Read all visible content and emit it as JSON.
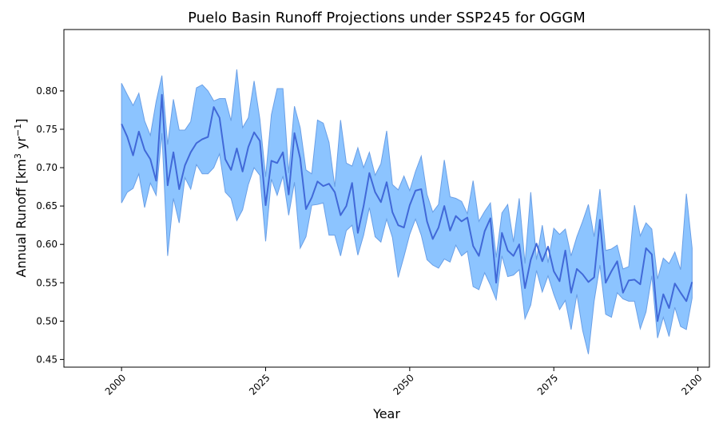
{
  "chart_data": {
    "type": "area",
    "title": "Puelo Basin Runoff Projections under SSP245 for OGGM",
    "xlabel": "Year",
    "ylabel": {
      "prefix": "Annual Runoff [km",
      "sup1": "3",
      "mid": " yr",
      "sup2": "−1",
      "suffix": "]"
    },
    "xlim": [
      1990,
      2102
    ],
    "ylim": [
      0.44,
      0.88
    ],
    "xticks": [
      2000,
      2025,
      2050,
      2075,
      2100
    ],
    "yticks": [
      0.45,
      0.5,
      0.55,
      0.6,
      0.65,
      0.7,
      0.75,
      0.8
    ],
    "grid": false,
    "x": [
      2000,
      2001,
      2002,
      2003,
      2004,
      2005,
      2006,
      2007,
      2008,
      2009,
      2010,
      2011,
      2012,
      2013,
      2014,
      2015,
      2016,
      2017,
      2018,
      2019,
      2020,
      2021,
      2022,
      2023,
      2024,
      2025,
      2026,
      2027,
      2028,
      2029,
      2030,
      2031,
      2032,
      2033,
      2034,
      2035,
      2036,
      2037,
      2038,
      2039,
      2040,
      2041,
      2042,
      2043,
      2044,
      2045,
      2046,
      2047,
      2048,
      2049,
      2050,
      2051,
      2052,
      2053,
      2054,
      2055,
      2056,
      2057,
      2058,
      2059,
      2060,
      2061,
      2062,
      2063,
      2064,
      2065,
      2066,
      2067,
      2068,
      2069,
      2070,
      2071,
      2072,
      2073,
      2074,
      2075,
      2076,
      2077,
      2078,
      2079,
      2080,
      2081,
      2082,
      2083,
      2084,
      2085,
      2086,
      2087,
      2088,
      2089,
      2090,
      2091,
      2092,
      2093,
      2094,
      2095,
      2096,
      2097,
      2098,
      2099
    ],
    "series": [
      {
        "values": [
          0.757,
          0.74,
          0.716,
          0.747,
          0.723,
          0.711,
          0.683,
          0.795,
          0.677,
          0.72,
          0.672,
          0.703,
          0.72,
          0.732,
          0.737,
          0.74,
          0.779,
          0.765,
          0.711,
          0.697,
          0.725,
          0.695,
          0.727,
          0.746,
          0.735,
          0.651,
          0.709,
          0.706,
          0.72,
          0.665,
          0.745,
          0.712,
          0.646,
          0.661,
          0.682,
          0.676,
          0.679,
          0.668,
          0.638,
          0.65,
          0.68,
          0.615,
          0.65,
          0.693,
          0.668,
          0.655,
          0.681,
          0.642,
          0.625,
          0.622,
          0.651,
          0.67,
          0.672,
          0.63,
          0.607,
          0.622,
          0.65,
          0.618,
          0.637,
          0.63,
          0.635,
          0.598,
          0.585,
          0.617,
          0.634,
          0.55,
          0.615,
          0.592,
          0.585,
          0.6,
          0.543,
          0.58,
          0.601,
          0.578,
          0.597,
          0.565,
          0.552,
          0.592,
          0.537,
          0.568,
          0.561,
          0.551,
          0.557,
          0.632,
          0.55,
          0.565,
          0.578,
          0.537,
          0.553,
          0.554,
          0.548,
          0.595,
          0.587,
          0.5,
          0.535,
          0.517,
          0.549,
          0.537,
          0.526,
          0.551
        ],
        "lower": [
          0.654,
          0.668,
          0.673,
          0.692,
          0.648,
          0.68,
          0.664,
          0.745,
          0.585,
          0.66,
          0.628,
          0.687,
          0.672,
          0.704,
          0.692,
          0.692,
          0.7,
          0.718,
          0.668,
          0.66,
          0.631,
          0.645,
          0.678,
          0.7,
          0.69,
          0.604,
          0.685,
          0.664,
          0.689,
          0.638,
          0.681,
          0.595,
          0.61,
          0.651,
          0.652,
          0.654,
          0.612,
          0.612,
          0.585,
          0.618,
          0.625,
          0.586,
          0.612,
          0.648,
          0.61,
          0.603,
          0.633,
          0.609,
          0.557,
          0.584,
          0.613,
          0.633,
          0.612,
          0.58,
          0.573,
          0.569,
          0.581,
          0.577,
          0.599,
          0.585,
          0.591,
          0.545,
          0.541,
          0.563,
          0.547,
          0.528,
          0.585,
          0.558,
          0.56,
          0.567,
          0.503,
          0.521,
          0.566,
          0.538,
          0.559,
          0.535,
          0.515,
          0.527,
          0.489,
          0.535,
          0.488,
          0.457,
          0.526,
          0.573,
          0.509,
          0.505,
          0.537,
          0.529,
          0.526,
          0.526,
          0.49,
          0.512,
          0.559,
          0.478,
          0.505,
          0.48,
          0.518,
          0.493,
          0.489,
          0.53
        ],
        "upper": [
          0.81,
          0.795,
          0.781,
          0.797,
          0.761,
          0.742,
          0.786,
          0.82,
          0.73,
          0.789,
          0.749,
          0.749,
          0.76,
          0.804,
          0.808,
          0.8,
          0.787,
          0.79,
          0.79,
          0.761,
          0.828,
          0.752,
          0.765,
          0.813,
          0.763,
          0.688,
          0.769,
          0.803,
          0.803,
          0.693,
          0.78,
          0.752,
          0.697,
          0.692,
          0.762,
          0.758,
          0.733,
          0.675,
          0.762,
          0.706,
          0.702,
          0.726,
          0.7,
          0.72,
          0.69,
          0.705,
          0.748,
          0.678,
          0.671,
          0.689,
          0.67,
          0.695,
          0.715,
          0.665,
          0.642,
          0.652,
          0.71,
          0.662,
          0.66,
          0.656,
          0.64,
          0.683,
          0.63,
          0.643,
          0.654,
          0.583,
          0.641,
          0.652,
          0.603,
          0.66,
          0.575,
          0.668,
          0.58,
          0.625,
          0.576,
          0.621,
          0.613,
          0.62,
          0.585,
          0.61,
          0.63,
          0.652,
          0.61,
          0.672,
          0.592,
          0.594,
          0.599,
          0.568,
          0.571,
          0.651,
          0.611,
          0.628,
          0.62,
          0.555,
          0.582,
          0.575,
          0.59,
          0.567,
          0.666,
          0.595
        ]
      }
    ],
    "colors": {
      "fill": "#8cc4ff",
      "edge": "#6a9fe6",
      "line": "#4169d8"
    }
  }
}
